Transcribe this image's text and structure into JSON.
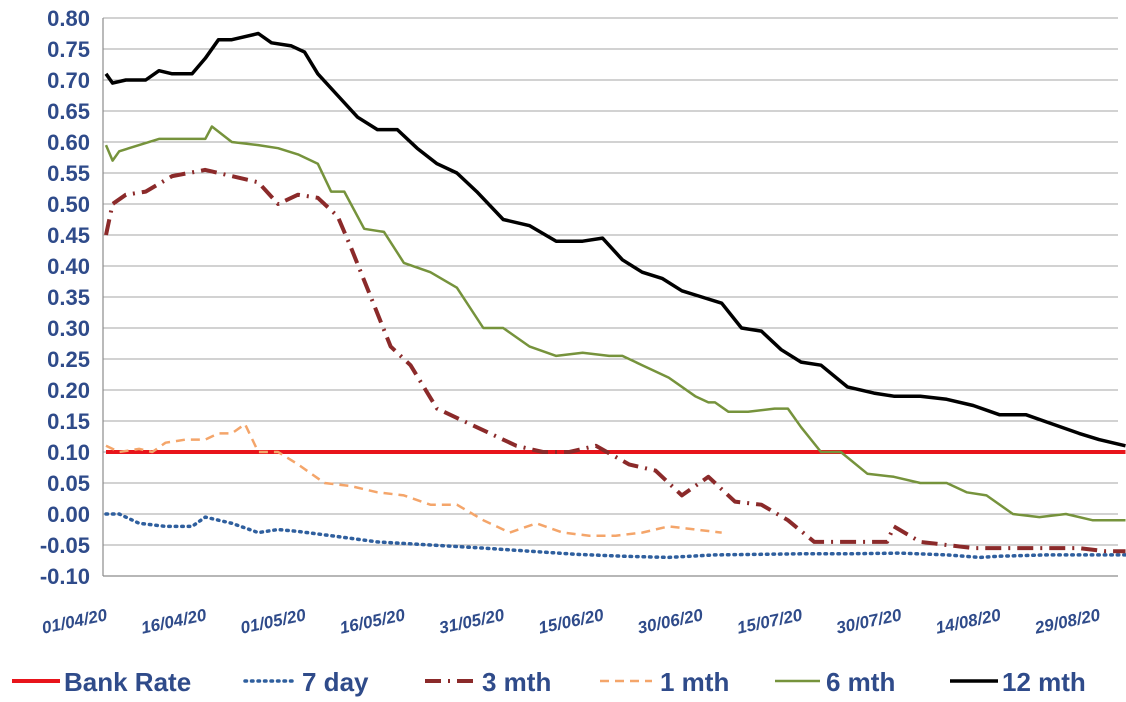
{
  "chart_data": {
    "type": "line",
    "ylim": [
      -0.1,
      0.8
    ],
    "ytick_step": 0.05,
    "grid": true,
    "legend_placement": "bottom",
    "x_tick_labels": [
      "01/04/20",
      "16/04/20",
      "01/05/20",
      "16/05/20",
      "31/05/20",
      "15/06/20",
      "30/06/20",
      "15/07/20",
      "30/07/20",
      "14/08/20",
      "29/08/20"
    ],
    "y_tick_labels": [
      "0.80",
      "0.75",
      "0.70",
      "0.65",
      "0.60",
      "0.55",
      "0.50",
      "0.45",
      "0.40",
      "0.35",
      "0.30",
      "0.25",
      "0.20",
      "0.15",
      "0.10",
      "0.05",
      "0.00",
      "-0.05",
      "-0.10"
    ],
    "series": [
      {
        "name": "Bank Rate",
        "color": "#e8141b",
        "dash": "solid",
        "x": [
          "01/04/20",
          "02/09/20"
        ],
        "values": [
          0.1,
          0.1
        ]
      },
      {
        "name": "7 day",
        "color": "#2f5f9e",
        "dash": "dotted",
        "x": [
          "01/04/20",
          "03/04/20",
          "06/04/20",
          "10/04/20",
          "14/04/20",
          "16/04/20",
          "20/04/20",
          "24/04/20",
          "27/04/20",
          "30/04/20",
          "05/05/20",
          "12/05/20",
          "20/05/20",
          "28/05/20",
          "04/06/20",
          "11/06/20",
          "18/06/20",
          "25/06/20",
          "02/07/20",
          "09/07/20",
          "16/07/20",
          "23/07/20",
          "30/07/20",
          "06/08/20",
          "11/08/20",
          "14/08/20",
          "21/08/20",
          "28/08/20",
          "02/09/20"
        ],
        "values": [
          0.0,
          0.0,
          -0.015,
          -0.02,
          -0.02,
          -0.005,
          -0.015,
          -0.03,
          -0.025,
          -0.028,
          -0.035,
          -0.045,
          -0.05,
          -0.055,
          -0.06,
          -0.065,
          -0.068,
          -0.07,
          -0.066,
          -0.065,
          -0.064,
          -0.064,
          -0.063,
          -0.066,
          -0.07,
          -0.068,
          -0.066,
          -0.066,
          -0.066
        ]
      },
      {
        "name": "3 mth",
        "color": "#8b2a2a",
        "dash": "dashdot",
        "x": [
          "01/04/20",
          "02/04/20",
          "04/04/20",
          "07/04/20",
          "11/04/20",
          "16/04/20",
          "20/04/20",
          "24/04/20",
          "27/04/20",
          "30/04/20",
          "03/05/20",
          "06/05/20",
          "08/05/20",
          "11/05/20",
          "14/05/20",
          "17/05/20",
          "21/05/20",
          "25/05/20",
          "29/05/20",
          "02/06/20",
          "06/06/20",
          "10/06/20",
          "14/06/20",
          "19/06/20",
          "23/06/20",
          "27/06/20",
          "01/07/20",
          "05/07/20",
          "09/07/20",
          "13/07/20",
          "17/07/20",
          "21/07/20",
          "25/07/20",
          "28/07/20",
          "29/07/20",
          "02/08/20",
          "06/08/20",
          "10/08/20",
          "14/08/20",
          "18/08/20",
          "22/08/20",
          "26/08/20",
          "30/08/20",
          "02/09/20"
        ],
        "values": [
          0.45,
          0.5,
          0.515,
          0.52,
          0.545,
          0.555,
          0.545,
          0.535,
          0.5,
          0.515,
          0.51,
          0.48,
          0.43,
          0.35,
          0.27,
          0.24,
          0.17,
          0.15,
          0.13,
          0.11,
          0.1,
          0.1,
          0.11,
          0.08,
          0.07,
          0.03,
          0.06,
          0.02,
          0.015,
          -0.01,
          -0.045,
          -0.045,
          -0.045,
          -0.045,
          -0.02,
          -0.045,
          -0.05,
          -0.055,
          -0.055,
          -0.055,
          -0.055,
          -0.055,
          -0.06,
          -0.06
        ]
      },
      {
        "name": "1 mth",
        "color": "#f4a56a",
        "dash": "dashed",
        "x": [
          "01/04/20",
          "03/04/20",
          "06/04/20",
          "08/04/20",
          "10/04/20",
          "13/04/20",
          "16/04/20",
          "18/04/20",
          "20/04/20",
          "22/04/20",
          "24/04/20",
          "27/04/20",
          "30/04/20",
          "04/05/20",
          "08/05/20",
          "12/05/20",
          "16/05/20",
          "20/05/20",
          "24/05/20",
          "28/05/20",
          "01/06/20",
          "05/06/20",
          "09/06/20",
          "13/06/20",
          "17/06/20",
          "21/06/20",
          "25/06/20",
          "29/06/20",
          "03/07/20"
        ],
        "values": [
          0.11,
          0.1,
          0.105,
          0.1,
          0.115,
          0.12,
          0.12,
          0.13,
          0.13,
          0.145,
          0.1,
          0.1,
          0.08,
          0.05,
          0.045,
          0.035,
          0.03,
          0.015,
          0.015,
          -0.01,
          -0.03,
          -0.015,
          -0.03,
          -0.035,
          -0.035,
          -0.03,
          -0.02,
          -0.025,
          -0.03
        ]
      },
      {
        "name": "6 mth",
        "color": "#76933c",
        "dash": "solid",
        "x": [
          "01/04/20",
          "02/04/20",
          "03/04/20",
          "06/04/20",
          "09/04/20",
          "12/04/20",
          "16/04/20",
          "17/04/20",
          "20/04/20",
          "24/04/20",
          "27/04/20",
          "30/04/20",
          "03/05/20",
          "05/05/20",
          "07/05/20",
          "10/05/20",
          "13/05/20",
          "16/05/20",
          "20/05/20",
          "24/05/20",
          "28/05/20",
          "31/05/20",
          "04/06/20",
          "08/06/20",
          "12/06/20",
          "16/06/20",
          "18/06/20",
          "21/06/20",
          "25/06/20",
          "29/06/20",
          "01/07/20",
          "02/07/20",
          "04/07/20",
          "07/07/20",
          "11/07/20",
          "13/07/20",
          "15/07/20",
          "18/07/20",
          "21/07/20",
          "25/07/20",
          "29/07/20",
          "02/08/20",
          "06/08/20",
          "09/08/20",
          "12/08/20",
          "16/08/20",
          "20/08/20",
          "24/08/20",
          "28/08/20",
          "02/09/20"
        ],
        "values": [
          0.595,
          0.57,
          0.585,
          0.595,
          0.605,
          0.605,
          0.605,
          0.625,
          0.6,
          0.595,
          0.59,
          0.58,
          0.565,
          0.52,
          0.52,
          0.46,
          0.455,
          0.405,
          0.39,
          0.365,
          0.3,
          0.3,
          0.27,
          0.255,
          0.26,
          0.255,
          0.255,
          0.24,
          0.22,
          0.19,
          0.18,
          0.18,
          0.165,
          0.165,
          0.17,
          0.17,
          0.14,
          0.1,
          0.1,
          0.065,
          0.06,
          0.05,
          0.05,
          0.035,
          0.03,
          0.0,
          -0.005,
          0.0,
          -0.01,
          -0.01
        ]
      },
      {
        "name": "12 mth",
        "color": "#000000",
        "dash": "solid",
        "x": [
          "01/04/20",
          "02/04/20",
          "04/04/20",
          "07/04/20",
          "09/04/20",
          "11/04/20",
          "14/04/20",
          "16/04/20",
          "18/04/20",
          "20/04/20",
          "24/04/20",
          "26/04/20",
          "29/04/20",
          "01/05/20",
          "03/05/20",
          "06/05/20",
          "09/05/20",
          "12/05/20",
          "15/05/20",
          "18/05/20",
          "21/05/20",
          "24/05/20",
          "27/05/20",
          "31/05/20",
          "04/06/20",
          "08/06/20",
          "12/06/20",
          "15/06/20",
          "18/06/20",
          "21/06/20",
          "24/06/20",
          "27/06/20",
          "30/06/20",
          "03/07/20",
          "06/07/20",
          "09/07/20",
          "12/07/20",
          "15/07/20",
          "18/07/20",
          "22/07/20",
          "26/07/20",
          "29/07/20",
          "02/08/20",
          "06/08/20",
          "10/08/20",
          "14/08/20",
          "18/08/20",
          "22/08/20",
          "26/08/20",
          "29/08/20",
          "02/09/20"
        ],
        "values": [
          0.71,
          0.695,
          0.7,
          0.7,
          0.715,
          0.71,
          0.71,
          0.735,
          0.765,
          0.765,
          0.775,
          0.76,
          0.755,
          0.745,
          0.71,
          0.675,
          0.64,
          0.62,
          0.62,
          0.59,
          0.565,
          0.55,
          0.52,
          0.475,
          0.465,
          0.44,
          0.44,
          0.445,
          0.41,
          0.39,
          0.38,
          0.36,
          0.35,
          0.34,
          0.3,
          0.295,
          0.265,
          0.245,
          0.24,
          0.205,
          0.195,
          0.19,
          0.19,
          0.185,
          0.175,
          0.16,
          0.16,
          0.145,
          0.13,
          0.12,
          0.11
        ]
      }
    ]
  }
}
